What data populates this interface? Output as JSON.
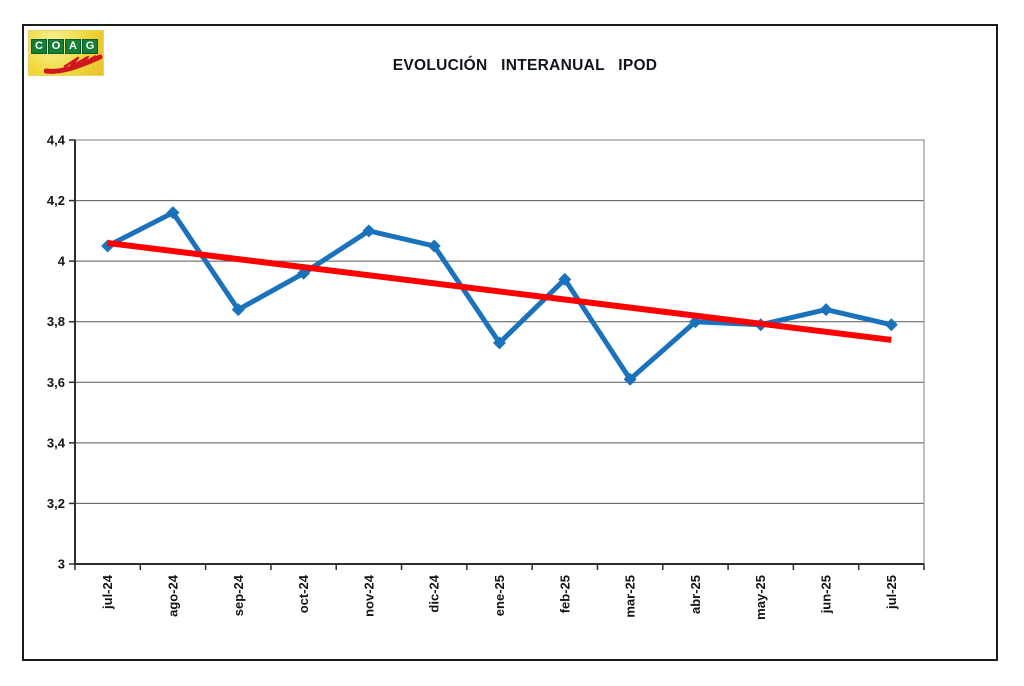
{
  "figure": {
    "background": "#ffffff",
    "border_color": "#1b1b1b"
  },
  "logo": {
    "name": "COAG",
    "letters": [
      "C",
      "O",
      "A",
      "G"
    ],
    "tile_color": "#157f38",
    "background_yellow": "#f1d93b",
    "swoosh_color": "#d11620"
  },
  "header": {
    "title": "EVOLUCIÓN INTERANUAL IPOD"
  },
  "chart_data": {
    "type": "line",
    "title": "EVOLUCIÓN INTERANUAL IPOD",
    "categories": [
      "jul-24",
      "ago-24",
      "sep-24",
      "oct-24",
      "nov-24",
      "dic-24",
      "ene-25",
      "feb-25",
      "mar-25",
      "abr-25",
      "may-25",
      "jun-25",
      "jul-25"
    ],
    "values": [
      4.05,
      4.16,
      3.84,
      3.96,
      4.1,
      4.05,
      3.73,
      3.94,
      3.61,
      3.8,
      3.79,
      3.84,
      3.79
    ],
    "line_color": "#1b72bc",
    "marker": "diamond",
    "trend_line": {
      "start": 4.06,
      "end": 3.74,
      "color": "#ff0000"
    },
    "ylim": [
      3,
      4.4
    ],
    "ytick_step": 0.2,
    "ytick_labels": [
      "3",
      "3,2",
      "3,4",
      "3,6",
      "3,8",
      "4",
      "4,2",
      "4,4"
    ],
    "xlabel": "",
    "ylabel": "",
    "grid": true,
    "legend": "none",
    "decimal_separator": ",",
    "style": {
      "grid_color": "#565656",
      "plot_border_color": "#9a9a9a",
      "axis_color": "#2d2d2d",
      "text_color": "#141414"
    }
  }
}
